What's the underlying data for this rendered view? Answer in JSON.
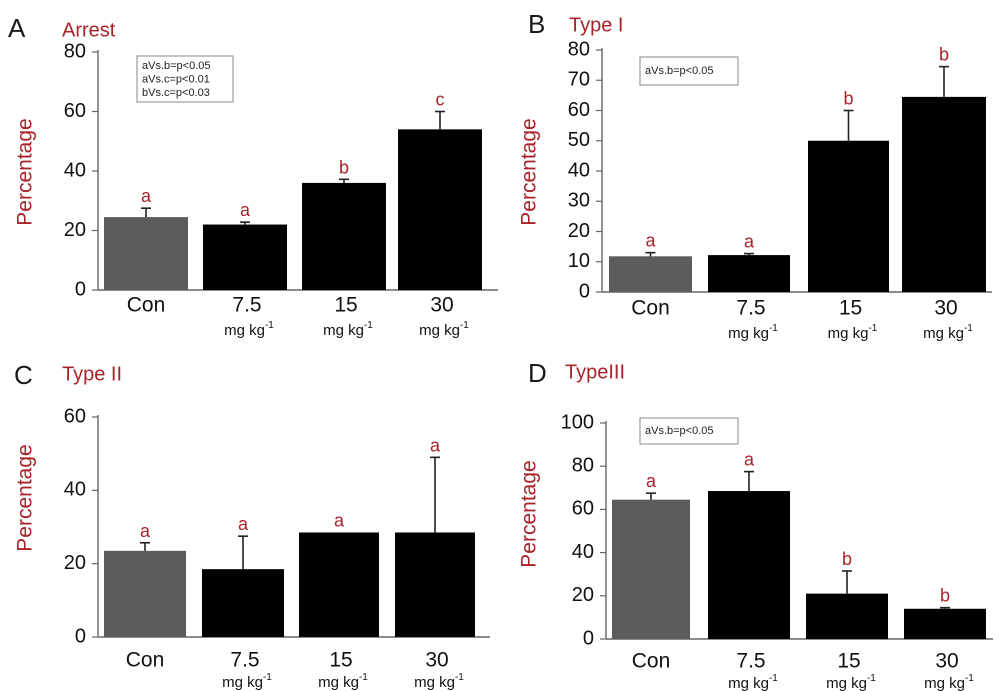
{
  "unit_label": "mg kg",
  "unit_superscript": "-1",
  "chart_data": [
    {
      "type": "bar",
      "panel_letter": "A",
      "title": "Arrest",
      "ylabel": "Percentage",
      "categories": [
        "Con",
        "7.5",
        "15",
        "30"
      ],
      "values": [
        24.5,
        22,
        36,
        54
      ],
      "errors": [
        3,
        0.8,
        1.2,
        6
      ],
      "significance": [
        "a",
        "a",
        "b",
        "c"
      ],
      "bar_colors": [
        "#5c5c5c",
        "#000000",
        "#000000",
        "#000000"
      ],
      "ylim": [
        0,
        80
      ],
      "yticks": [
        0,
        20,
        40,
        60,
        80
      ],
      "legend": [
        "aVs.b=p<0.05",
        "aVs.c=p<0.01",
        "bVs.c=p<0.03"
      ]
    },
    {
      "type": "bar",
      "panel_letter": "B",
      "title": "Type I",
      "ylabel": "Percentage",
      "categories": [
        "Con",
        "7.5",
        "15",
        "30"
      ],
      "values": [
        11.8,
        12.2,
        50,
        64.5
      ],
      "errors": [
        1.2,
        0.5,
        10,
        10
      ],
      "significance": [
        "a",
        "a",
        "b",
        "b"
      ],
      "bar_colors": [
        "#5c5c5c",
        "#000000",
        "#000000",
        "#000000"
      ],
      "ylim": [
        0,
        80
      ],
      "yticks": [
        0,
        10,
        20,
        30,
        40,
        50,
        60,
        70,
        80
      ],
      "legend": [
        "aVs.b=p<0.05"
      ]
    },
    {
      "type": "bar",
      "panel_letter": "C",
      "title": "Type II",
      "ylabel": "Percentage",
      "categories": [
        "Con",
        "7.5",
        "15",
        "30"
      ],
      "values": [
        23.5,
        18.5,
        28.5,
        28.5
      ],
      "errors": [
        2.2,
        9,
        0,
        20.5
      ],
      "significance": [
        "a",
        "a",
        "a",
        "a"
      ],
      "bar_colors": [
        "#5c5c5c",
        "#000000",
        "#000000",
        "#000000"
      ],
      "ylim": [
        0,
        60
      ],
      "yticks": [
        0,
        20,
        40,
        60
      ],
      "legend": []
    },
    {
      "type": "bar",
      "panel_letter": "D",
      "title": "TypeIII",
      "ylabel": "Percentage",
      "categories": [
        "Con",
        "7.5",
        "15",
        "30"
      ],
      "values": [
        64.5,
        68.5,
        21,
        14
      ],
      "errors": [
        3,
        9,
        10.5,
        0.5
      ],
      "significance": [
        "a",
        "a",
        "b",
        "b"
      ],
      "bar_colors": [
        "#5c5c5c",
        "#000000",
        "#000000",
        "#000000"
      ],
      "ylim": [
        0,
        100
      ],
      "yticks": [
        0,
        20,
        40,
        60,
        80,
        100
      ],
      "legend": [
        "aVs.b=p<0.05"
      ]
    }
  ]
}
